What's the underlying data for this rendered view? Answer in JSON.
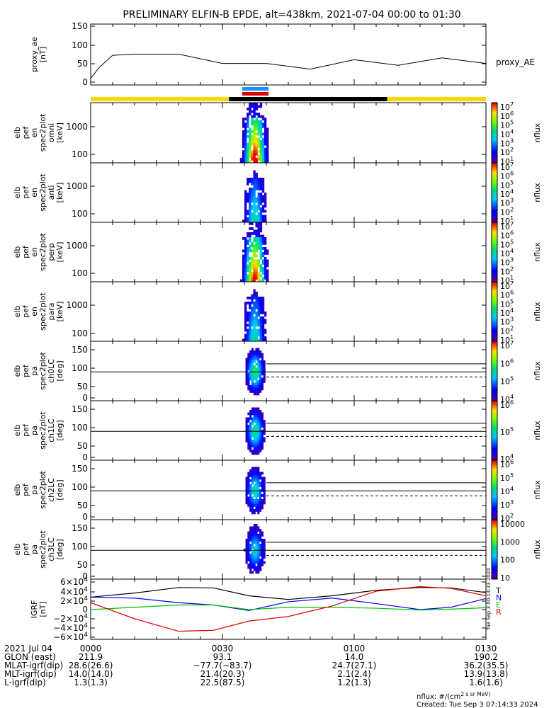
{
  "title": "PRELIMINARY ELFIN-B EPDE, alt=438km, 2021-07-04 00:00 to 01:30",
  "x_ticks": [
    "0000",
    "0030",
    "0100",
    "0130"
  ],
  "chart_data": [
    {
      "type": "line",
      "ylabel": [
        "proxy_ae",
        "[nT]"
      ],
      "series_label": "proxy_AE",
      "y_ticks": [
        "150",
        "100",
        "50",
        "0"
      ],
      "ylim": [
        0,
        150
      ],
      "x_minutes": [
        0,
        2,
        5,
        10,
        20,
        30,
        40,
        50,
        60,
        70,
        80,
        90
      ],
      "values": [
        10,
        40,
        72,
        75,
        75,
        50,
        50,
        35,
        60,
        45,
        65,
        50
      ]
    },
    {
      "type": "bar",
      "description_bars": "orbit region bar",
      "segments": [
        {
          "from_min": 0,
          "to_min": 31.5,
          "color": "#ffd700"
        },
        {
          "from_min": 31.5,
          "to_min": 67.5,
          "color": "#000000"
        },
        {
          "from_min": 67.5,
          "to_min": 90,
          "color": "#ffd700"
        }
      ],
      "markers": [
        {
          "color": "#1e90ff"
        },
        {
          "color": "#e00000"
        }
      ]
    },
    {
      "type": "heatmap",
      "ylabel": [
        "elb",
        "pef",
        "en",
        "spec2plot",
        "omni",
        "[keV]"
      ],
      "y_ticks": [
        "1000",
        "100"
      ],
      "colorbar_ticks": [
        "10^7",
        "10^6",
        "10^5",
        "10^4",
        "10^3",
        "10^2",
        "10^1"
      ],
      "colorbar_label": "nflux"
    },
    {
      "type": "heatmap",
      "ylabel": [
        "elb",
        "pef",
        "en",
        "spec2plot",
        "anti",
        "[keV]"
      ],
      "y_ticks": [
        "1000",
        "100"
      ],
      "colorbar_ticks": [
        "10^7",
        "10^6",
        "10^5",
        "10^4",
        "10^3",
        "10^2",
        "10^1"
      ],
      "colorbar_label": "nflux"
    },
    {
      "type": "heatmap",
      "ylabel": [
        "elb",
        "pef",
        "en",
        "spec2plot",
        "perp",
        "[keV]"
      ],
      "y_ticks": [
        "1000",
        "100"
      ],
      "colorbar_ticks": [
        "10^7",
        "10^6",
        "10^5",
        "10^4",
        "10^3",
        "10^2",
        "10^1"
      ],
      "colorbar_label": "nflux"
    },
    {
      "type": "heatmap",
      "ylabel": [
        "elb",
        "pef",
        "en",
        "spec2plot",
        "para",
        "[keV]"
      ],
      "y_ticks": [
        "1000",
        "100"
      ],
      "colorbar_ticks": [
        "10^7",
        "10^6",
        "10^5",
        "10^4",
        "10^3",
        "10^2",
        "10^1"
      ],
      "colorbar_label": "nflux"
    },
    {
      "type": "heatmap",
      "ylabel": [
        "elb",
        "pef",
        "pa",
        "spec2plot",
        "ch0LC",
        "[deg]"
      ],
      "y_ticks": [
        "150",
        "100",
        "50",
        "0"
      ],
      "colorbar_ticks": [
        "10^7",
        "10^6",
        "10^5",
        "10^4"
      ],
      "colorbar_label": "nflux"
    },
    {
      "type": "heatmap",
      "ylabel": [
        "elb",
        "pef",
        "pa",
        "spec2plot",
        "ch1LC",
        "[deg]"
      ],
      "y_ticks": [
        "150",
        "100",
        "50",
        "0"
      ],
      "colorbar_ticks": [
        "10^6",
        "10^5",
        "10^4"
      ],
      "colorbar_label": "nflux"
    },
    {
      "type": "heatmap",
      "ylabel": [
        "elb",
        "pef",
        "pa",
        "spec2plot",
        "ch2LC",
        "[deg]"
      ],
      "y_ticks": [
        "150",
        "100",
        "50",
        "0"
      ],
      "colorbar_ticks": [
        "10^6",
        "10^5",
        "10^4",
        "10^3",
        "10^2"
      ],
      "colorbar_label": "nflux"
    },
    {
      "type": "heatmap",
      "ylabel": [
        "elb",
        "pef",
        "pa",
        "spec2plot",
        "ch3LC",
        "[deg]"
      ],
      "y_ticks": [
        "150",
        "100",
        "50",
        "0"
      ],
      "colorbar_ticks": [
        "10000",
        "1000",
        "100",
        "10"
      ],
      "colorbar_label": "nflux"
    },
    {
      "type": "line",
      "ylabel": [
        "IGRF",
        "[nT]"
      ],
      "y_ticks": [
        "6×10^4",
        "4×10^4",
        "2×10^4",
        "0",
        "−2×10^4",
        "−4×10^4",
        "−6×10^4"
      ],
      "ylim": [
        -60000,
        60000
      ],
      "x_minutes": [
        0,
        10,
        20,
        28,
        36,
        45,
        55,
        65,
        75,
        82,
        90
      ],
      "series": [
        {
          "name": "T",
          "color": "#000000",
          "values": [
            27000,
            36000,
            48000,
            47000,
            30000,
            22000,
            30000,
            42000,
            48000,
            47000,
            37000
          ]
        },
        {
          "name": "N",
          "color": "#0000ff",
          "values": [
            27000,
            25000,
            15000,
            10000,
            -2000,
            17000,
            25000,
            13000,
            0,
            5000,
            24000
          ]
        },
        {
          "name": "E",
          "color": "#00c000",
          "values": [
            0,
            5000,
            10000,
            10000,
            0,
            5000,
            5000,
            3000,
            -1000,
            1000,
            4000
          ]
        },
        {
          "name": "R",
          "color": "#e00000",
          "values": [
            15000,
            -20000,
            -47000,
            -45000,
            -25000,
            -15000,
            8000,
            40000,
            50000,
            46000,
            30000
          ]
        }
      ]
    }
  ],
  "footer": {
    "rows": [
      {
        "label": "2021 Jul 04",
        "values": [
          "0000",
          "0030",
          "0100",
          "0130"
        ]
      },
      {
        "label": "GLON (east)",
        "values": [
          "211.9",
          "93.1",
          "14.0",
          "190.2"
        ]
      },
      {
        "label": "MLAT-igrf(dip)",
        "values": [
          "28.6(26.6)",
          "−77.7(−83.7)",
          "24.7(27.1)",
          "36.2(35.5)"
        ]
      },
      {
        "label": "MLT-igrf(dip)",
        "values": [
          "14.0(14.0)",
          "21.4(20.3)",
          "2.1(2.4)",
          "13.9(13.8)"
        ]
      },
      {
        "label": "L-igrf(dip)",
        "values": [
          "1.3(1.3)",
          "22.5(87.5)",
          "1.2(1.3)",
          "1.6(1.6)"
        ]
      }
    ],
    "units_note": "nflux: #/(cm^2 s sr MeV)",
    "created": "Created: Tue Sep  3 07:14:33 2024",
    "vertical_stamp": "Tue Sep  3 00:14:33 2024"
  }
}
